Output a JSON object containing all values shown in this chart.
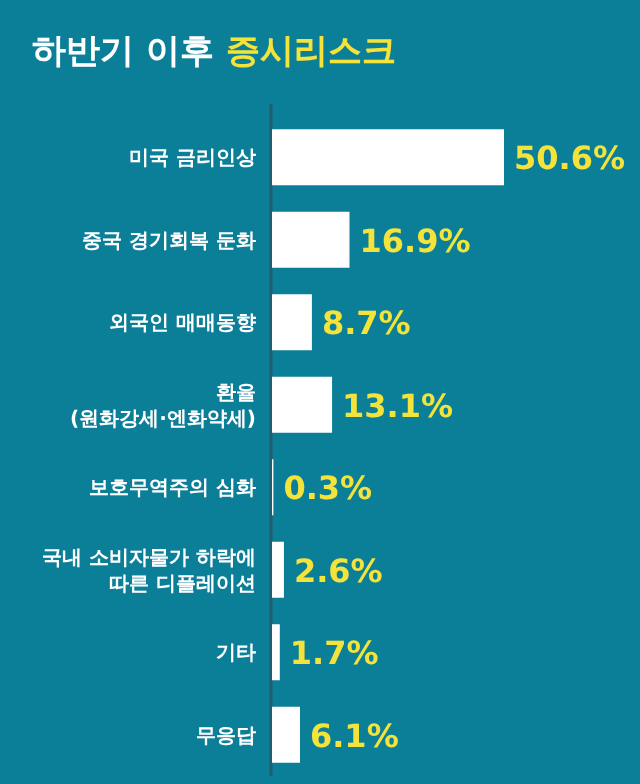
{
  "chart_data": {
    "type": "bar",
    "orientation": "horizontal",
    "title": "하반기 이후 증시리스크",
    "categories": [
      "미국 금리인상",
      "중국 경기회복 둔화",
      "외국인 매매동향",
      "환율\n(원화강세·엔화약세)",
      "보호무역주의 심화",
      "국내 소비자물가 하락에\n따른 디플레이션",
      "기타",
      "무응답"
    ],
    "values": [
      50.6,
      16.9,
      8.7,
      13.1,
      0.3,
      2.6,
      1.7,
      6.1
    ],
    "value_labels": [
      "50.6%",
      "16.9%",
      "8.7%",
      "13.1%",
      "0.3%",
      "2.6%",
      "1.7%",
      "6.1%"
    ],
    "color": "#ffffff"
  }
}
